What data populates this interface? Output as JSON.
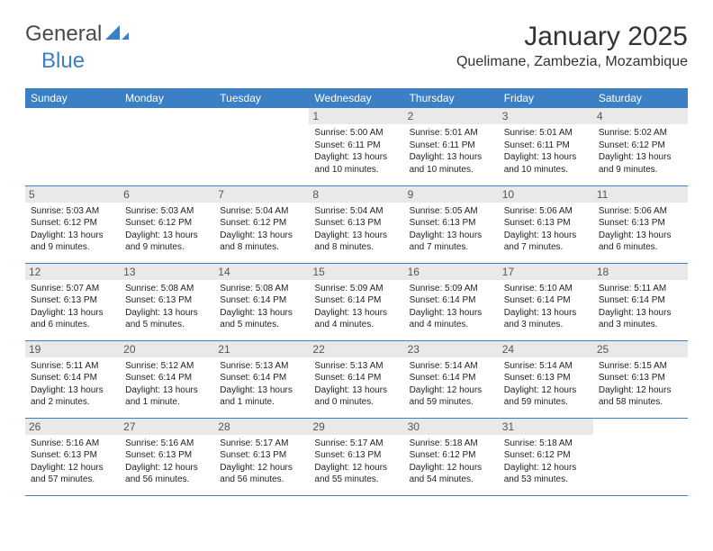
{
  "logo": {
    "word1": "General",
    "word2": "Blue"
  },
  "title": "January 2025",
  "location": "Quelimane, Zambezia, Mozambique",
  "colors": {
    "accent": "#3b7fc4",
    "band": "#e9e9e9",
    "text": "#1f1f1f",
    "background": "#ffffff"
  },
  "weekdays": [
    "Sunday",
    "Monday",
    "Tuesday",
    "Wednesday",
    "Thursday",
    "Friday",
    "Saturday"
  ],
  "weeks": [
    [
      null,
      null,
      null,
      {
        "n": "1",
        "sunrise": "Sunrise: 5:00 AM",
        "sunset": "Sunset: 6:11 PM",
        "daylight1": "Daylight: 13 hours",
        "daylight2": "and 10 minutes."
      },
      {
        "n": "2",
        "sunrise": "Sunrise: 5:01 AM",
        "sunset": "Sunset: 6:11 PM",
        "daylight1": "Daylight: 13 hours",
        "daylight2": "and 10 minutes."
      },
      {
        "n": "3",
        "sunrise": "Sunrise: 5:01 AM",
        "sunset": "Sunset: 6:11 PM",
        "daylight1": "Daylight: 13 hours",
        "daylight2": "and 10 minutes."
      },
      {
        "n": "4",
        "sunrise": "Sunrise: 5:02 AM",
        "sunset": "Sunset: 6:12 PM",
        "daylight1": "Daylight: 13 hours",
        "daylight2": "and 9 minutes."
      }
    ],
    [
      {
        "n": "5",
        "sunrise": "Sunrise: 5:03 AM",
        "sunset": "Sunset: 6:12 PM",
        "daylight1": "Daylight: 13 hours",
        "daylight2": "and 9 minutes."
      },
      {
        "n": "6",
        "sunrise": "Sunrise: 5:03 AM",
        "sunset": "Sunset: 6:12 PM",
        "daylight1": "Daylight: 13 hours",
        "daylight2": "and 9 minutes."
      },
      {
        "n": "7",
        "sunrise": "Sunrise: 5:04 AM",
        "sunset": "Sunset: 6:12 PM",
        "daylight1": "Daylight: 13 hours",
        "daylight2": "and 8 minutes."
      },
      {
        "n": "8",
        "sunrise": "Sunrise: 5:04 AM",
        "sunset": "Sunset: 6:13 PM",
        "daylight1": "Daylight: 13 hours",
        "daylight2": "and 8 minutes."
      },
      {
        "n": "9",
        "sunrise": "Sunrise: 5:05 AM",
        "sunset": "Sunset: 6:13 PM",
        "daylight1": "Daylight: 13 hours",
        "daylight2": "and 7 minutes."
      },
      {
        "n": "10",
        "sunrise": "Sunrise: 5:06 AM",
        "sunset": "Sunset: 6:13 PM",
        "daylight1": "Daylight: 13 hours",
        "daylight2": "and 7 minutes."
      },
      {
        "n": "11",
        "sunrise": "Sunrise: 5:06 AM",
        "sunset": "Sunset: 6:13 PM",
        "daylight1": "Daylight: 13 hours",
        "daylight2": "and 6 minutes."
      }
    ],
    [
      {
        "n": "12",
        "sunrise": "Sunrise: 5:07 AM",
        "sunset": "Sunset: 6:13 PM",
        "daylight1": "Daylight: 13 hours",
        "daylight2": "and 6 minutes."
      },
      {
        "n": "13",
        "sunrise": "Sunrise: 5:08 AM",
        "sunset": "Sunset: 6:13 PM",
        "daylight1": "Daylight: 13 hours",
        "daylight2": "and 5 minutes."
      },
      {
        "n": "14",
        "sunrise": "Sunrise: 5:08 AM",
        "sunset": "Sunset: 6:14 PM",
        "daylight1": "Daylight: 13 hours",
        "daylight2": "and 5 minutes."
      },
      {
        "n": "15",
        "sunrise": "Sunrise: 5:09 AM",
        "sunset": "Sunset: 6:14 PM",
        "daylight1": "Daylight: 13 hours",
        "daylight2": "and 4 minutes."
      },
      {
        "n": "16",
        "sunrise": "Sunrise: 5:09 AM",
        "sunset": "Sunset: 6:14 PM",
        "daylight1": "Daylight: 13 hours",
        "daylight2": "and 4 minutes."
      },
      {
        "n": "17",
        "sunrise": "Sunrise: 5:10 AM",
        "sunset": "Sunset: 6:14 PM",
        "daylight1": "Daylight: 13 hours",
        "daylight2": "and 3 minutes."
      },
      {
        "n": "18",
        "sunrise": "Sunrise: 5:11 AM",
        "sunset": "Sunset: 6:14 PM",
        "daylight1": "Daylight: 13 hours",
        "daylight2": "and 3 minutes."
      }
    ],
    [
      {
        "n": "19",
        "sunrise": "Sunrise: 5:11 AM",
        "sunset": "Sunset: 6:14 PM",
        "daylight1": "Daylight: 13 hours",
        "daylight2": "and 2 minutes."
      },
      {
        "n": "20",
        "sunrise": "Sunrise: 5:12 AM",
        "sunset": "Sunset: 6:14 PM",
        "daylight1": "Daylight: 13 hours",
        "daylight2": "and 1 minute."
      },
      {
        "n": "21",
        "sunrise": "Sunrise: 5:13 AM",
        "sunset": "Sunset: 6:14 PM",
        "daylight1": "Daylight: 13 hours",
        "daylight2": "and 1 minute."
      },
      {
        "n": "22",
        "sunrise": "Sunrise: 5:13 AM",
        "sunset": "Sunset: 6:14 PM",
        "daylight1": "Daylight: 13 hours",
        "daylight2": "and 0 minutes."
      },
      {
        "n": "23",
        "sunrise": "Sunrise: 5:14 AM",
        "sunset": "Sunset: 6:14 PM",
        "daylight1": "Daylight: 12 hours",
        "daylight2": "and 59 minutes."
      },
      {
        "n": "24",
        "sunrise": "Sunrise: 5:14 AM",
        "sunset": "Sunset: 6:13 PM",
        "daylight1": "Daylight: 12 hours",
        "daylight2": "and 59 minutes."
      },
      {
        "n": "25",
        "sunrise": "Sunrise: 5:15 AM",
        "sunset": "Sunset: 6:13 PM",
        "daylight1": "Daylight: 12 hours",
        "daylight2": "and 58 minutes."
      }
    ],
    [
      {
        "n": "26",
        "sunrise": "Sunrise: 5:16 AM",
        "sunset": "Sunset: 6:13 PM",
        "daylight1": "Daylight: 12 hours",
        "daylight2": "and 57 minutes."
      },
      {
        "n": "27",
        "sunrise": "Sunrise: 5:16 AM",
        "sunset": "Sunset: 6:13 PM",
        "daylight1": "Daylight: 12 hours",
        "daylight2": "and 56 minutes."
      },
      {
        "n": "28",
        "sunrise": "Sunrise: 5:17 AM",
        "sunset": "Sunset: 6:13 PM",
        "daylight1": "Daylight: 12 hours",
        "daylight2": "and 56 minutes."
      },
      {
        "n": "29",
        "sunrise": "Sunrise: 5:17 AM",
        "sunset": "Sunset: 6:13 PM",
        "daylight1": "Daylight: 12 hours",
        "daylight2": "and 55 minutes."
      },
      {
        "n": "30",
        "sunrise": "Sunrise: 5:18 AM",
        "sunset": "Sunset: 6:12 PM",
        "daylight1": "Daylight: 12 hours",
        "daylight2": "and 54 minutes."
      },
      {
        "n": "31",
        "sunrise": "Sunrise: 5:18 AM",
        "sunset": "Sunset: 6:12 PM",
        "daylight1": "Daylight: 12 hours",
        "daylight2": "and 53 minutes."
      },
      null
    ]
  ]
}
